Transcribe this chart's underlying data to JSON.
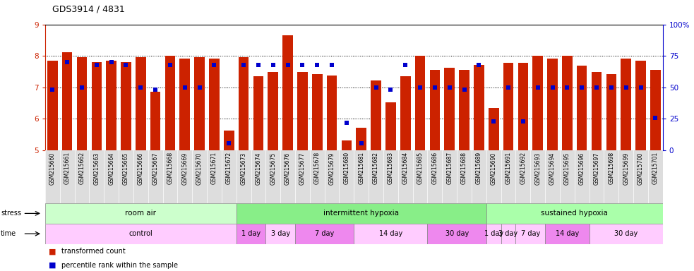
{
  "title": "GDS3914 / 4831",
  "samples": [
    "GSM215660",
    "GSM215661",
    "GSM215662",
    "GSM215663",
    "GSM215664",
    "GSM215665",
    "GSM215666",
    "GSM215667",
    "GSM215668",
    "GSM215669",
    "GSM215670",
    "GSM215671",
    "GSM215672",
    "GSM215673",
    "GSM215674",
    "GSM215675",
    "GSM215676",
    "GSM215677",
    "GSM215678",
    "GSM215679",
    "GSM215680",
    "GSM215681",
    "GSM215682",
    "GSM215683",
    "GSM215684",
    "GSM215685",
    "GSM215686",
    "GSM215687",
    "GSM215688",
    "GSM215689",
    "GSM215690",
    "GSM215691",
    "GSM215692",
    "GSM215693",
    "GSM215694",
    "GSM215695",
    "GSM215696",
    "GSM215697",
    "GSM215698",
    "GSM215699",
    "GSM215700",
    "GSM215701"
  ],
  "transformed_count": [
    7.85,
    8.12,
    7.95,
    7.8,
    7.85,
    7.8,
    7.95,
    6.87,
    8.0,
    7.92,
    7.95,
    7.92,
    5.62,
    7.95,
    7.35,
    7.48,
    8.65,
    7.48,
    7.42,
    7.38,
    5.32,
    5.72,
    7.22,
    6.52,
    7.35,
    8.0,
    7.55,
    7.62,
    7.55,
    7.72,
    6.35,
    7.78,
    7.78,
    8.0,
    7.92,
    8.0,
    7.68,
    7.48,
    7.42,
    7.92,
    7.85,
    7.55
  ],
  "percentile_rank": [
    48,
    70,
    50,
    68,
    70,
    68,
    50,
    48,
    68,
    50,
    50,
    68,
    5.8,
    68,
    68,
    68,
    68,
    68,
    68,
    68,
    22,
    5.9,
    50,
    48,
    68,
    50,
    50,
    50,
    48,
    68,
    23,
    50,
    23,
    50,
    50,
    50,
    50,
    50,
    50,
    50,
    50,
    26
  ],
  "ylim_left": [
    5,
    9
  ],
  "ylim_right": [
    0,
    100
  ],
  "yticks_left": [
    5,
    6,
    7,
    8,
    9
  ],
  "yticks_right": [
    0,
    25,
    50,
    75,
    100
  ],
  "bar_color": "#cc2200",
  "dot_color": "#0000cc",
  "stress_groups": [
    {
      "label": "room air",
      "start": 0,
      "end": 13,
      "color": "#ccffcc"
    },
    {
      "label": "intermittent hypoxia",
      "start": 13,
      "end": 30,
      "color": "#88ee88"
    },
    {
      "label": "sustained hypoxia",
      "start": 30,
      "end": 42,
      "color": "#aaffaa"
    }
  ],
  "time_groups": [
    {
      "label": "control",
      "start": 0,
      "end": 13,
      "color": "#ffccff"
    },
    {
      "label": "1 day",
      "start": 13,
      "end": 15,
      "color": "#ee88ee"
    },
    {
      "label": "3 day",
      "start": 15,
      "end": 17,
      "color": "#ffccff"
    },
    {
      "label": "7 day",
      "start": 17,
      "end": 21,
      "color": "#ee88ee"
    },
    {
      "label": "14 day",
      "start": 21,
      "end": 26,
      "color": "#ffccff"
    },
    {
      "label": "30 day",
      "start": 26,
      "end": 30,
      "color": "#ee88ee"
    },
    {
      "label": "1 day",
      "start": 30,
      "end": 31,
      "color": "#ffccff"
    },
    {
      "label": "3 day",
      "start": 31,
      "end": 32,
      "color": "#ffccff"
    },
    {
      "label": "7 day",
      "start": 32,
      "end": 34,
      "color": "#ffccff"
    },
    {
      "label": "14 day",
      "start": 34,
      "end": 37,
      "color": "#ee88ee"
    },
    {
      "label": "30 day",
      "start": 37,
      "end": 42,
      "color": "#ffccff"
    }
  ]
}
